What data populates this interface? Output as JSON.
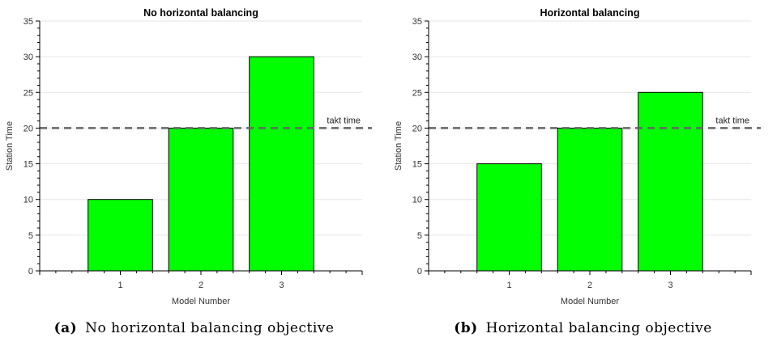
{
  "chart_data": [
    {
      "type": "bar",
      "title": "No horizontal balancing",
      "xlabel": "Model Number",
      "ylabel": "Station Time",
      "categories": [
        "1",
        "2",
        "3"
      ],
      "x": [
        1,
        2,
        3
      ],
      "values": [
        10,
        20,
        30
      ],
      "xlim": [
        0,
        4
      ],
      "ylim": [
        0,
        35
      ],
      "y_ticks": [
        0,
        5,
        10,
        15,
        20,
        25,
        30,
        35
      ],
      "grid": "horizontal",
      "bar_color": "#00ff00",
      "reference_line": {
        "value": 20,
        "label": "takt time",
        "style": "dashed",
        "color": "#666666"
      },
      "caption_tag": "(a)",
      "caption_text": "No horizontal balancing objective"
    },
    {
      "type": "bar",
      "title": "Horizontal balancing",
      "xlabel": "Model Number",
      "ylabel": "Station Time",
      "categories": [
        "1",
        "2",
        "3"
      ],
      "x": [
        1,
        2,
        3
      ],
      "values": [
        15,
        20,
        25
      ],
      "xlim": [
        0,
        4
      ],
      "ylim": [
        0,
        35
      ],
      "y_ticks": [
        0,
        5,
        10,
        15,
        20,
        25,
        30,
        35
      ],
      "grid": "horizontal",
      "bar_color": "#00ff00",
      "reference_line": {
        "value": 20,
        "label": "takt time",
        "style": "dashed",
        "color": "#666666"
      },
      "caption_tag": "(b)",
      "caption_text": "Horizontal balancing objective"
    }
  ]
}
